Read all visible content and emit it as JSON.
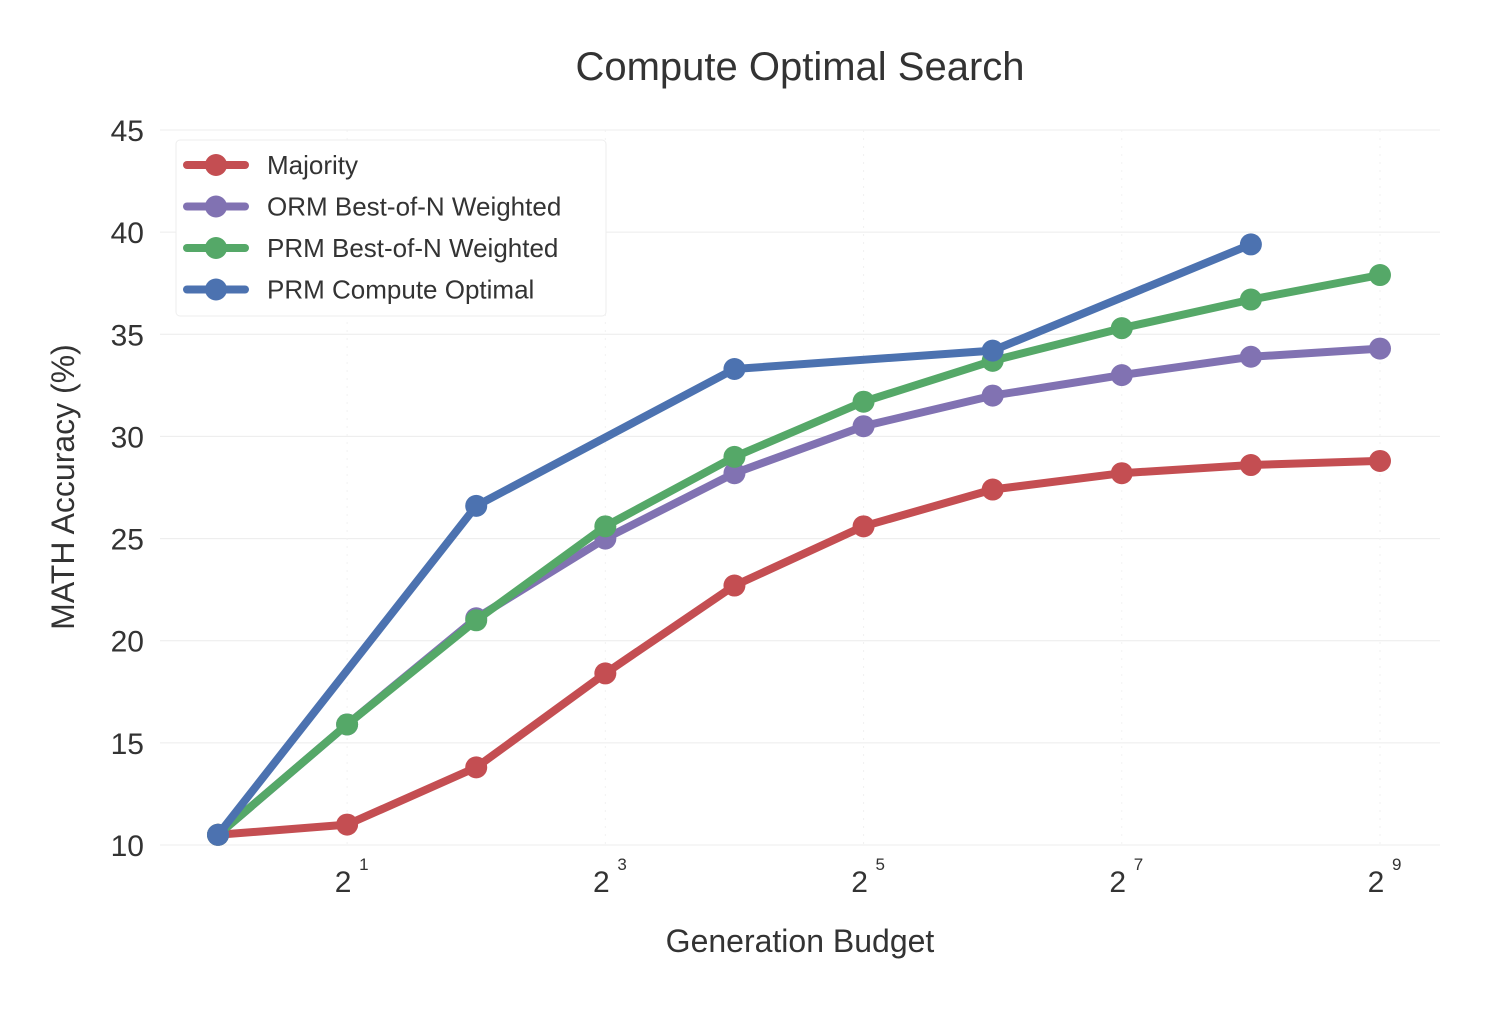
{
  "chart_data": {
    "type": "line",
    "title": "Compute Optimal Search",
    "xlabel": "Generation Budget",
    "ylabel": "MATH Accuracy (%)",
    "x_scale": "log2",
    "xlim": [
      1,
      512
    ],
    "ylim": [
      10,
      45
    ],
    "yticks": [
      10,
      15,
      20,
      25,
      30,
      35,
      40,
      45
    ],
    "xticks": [
      {
        "value": 2,
        "base": "2",
        "exp": "1"
      },
      {
        "value": 8,
        "base": "2",
        "exp": "3"
      },
      {
        "value": 32,
        "base": "2",
        "exp": "5"
      },
      {
        "value": 128,
        "base": "2",
        "exp": "7"
      },
      {
        "value": 512,
        "base": "2",
        "exp": "9"
      }
    ],
    "grid": true,
    "legend_position": "top-left",
    "series": [
      {
        "name": "Majority",
        "color": "#c44e52",
        "x": [
          1,
          2,
          4,
          8,
          16,
          32,
          64,
          128,
          256,
          512
        ],
        "y": [
          10.5,
          11.0,
          13.8,
          18.4,
          22.7,
          25.6,
          27.4,
          28.2,
          28.6,
          28.8
        ]
      },
      {
        "name": "ORM Best-of-N Weighted",
        "color": "#8172b2",
        "x": [
          1,
          2,
          4,
          8,
          16,
          32,
          64,
          128,
          256,
          512
        ],
        "y": [
          10.5,
          15.9,
          21.1,
          25.0,
          28.2,
          30.5,
          32.0,
          33.0,
          33.9,
          34.3
        ]
      },
      {
        "name": "PRM Best-of-N Weighted",
        "color": "#55a868",
        "x": [
          1,
          2,
          4,
          8,
          16,
          32,
          64,
          128,
          256,
          512
        ],
        "y": [
          10.5,
          15.9,
          21.0,
          25.6,
          29.0,
          31.7,
          33.7,
          35.3,
          36.7,
          37.9
        ]
      },
      {
        "name": "PRM Compute Optimal",
        "color": "#4c72b0",
        "x": [
          1,
          4,
          16,
          64,
          256
        ],
        "y": [
          10.5,
          26.6,
          33.3,
          34.2,
          39.4
        ]
      }
    ]
  }
}
